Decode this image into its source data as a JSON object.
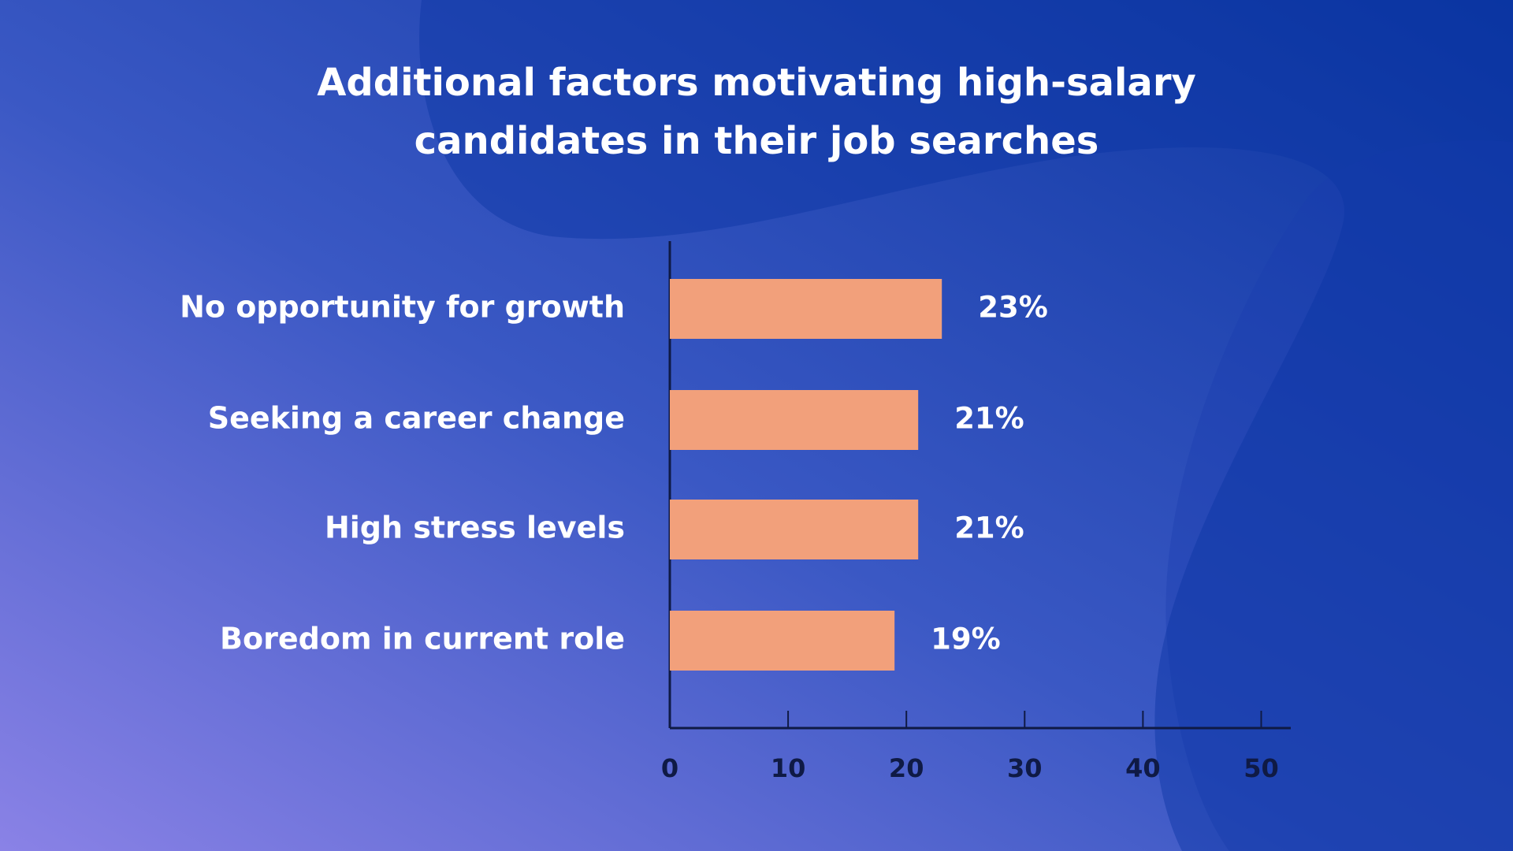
{
  "chart_data": {
    "type": "bar",
    "orientation": "horizontal",
    "title": "Additional factors motivating high-salary",
    "subtitle": "candidates in their job searches",
    "categories": [
      "No opportunity for growth",
      "Seeking a career change",
      "High stress levels",
      "Boredom in current role"
    ],
    "values": [
      23,
      21,
      21,
      19
    ],
    "value_labels": [
      "23%",
      "21%",
      "21%",
      "19%"
    ],
    "color": "#f2a07b",
    "xlim": [
      0,
      52.5
    ],
    "xticks": [
      0,
      10,
      20,
      30,
      40,
      50
    ]
  }
}
